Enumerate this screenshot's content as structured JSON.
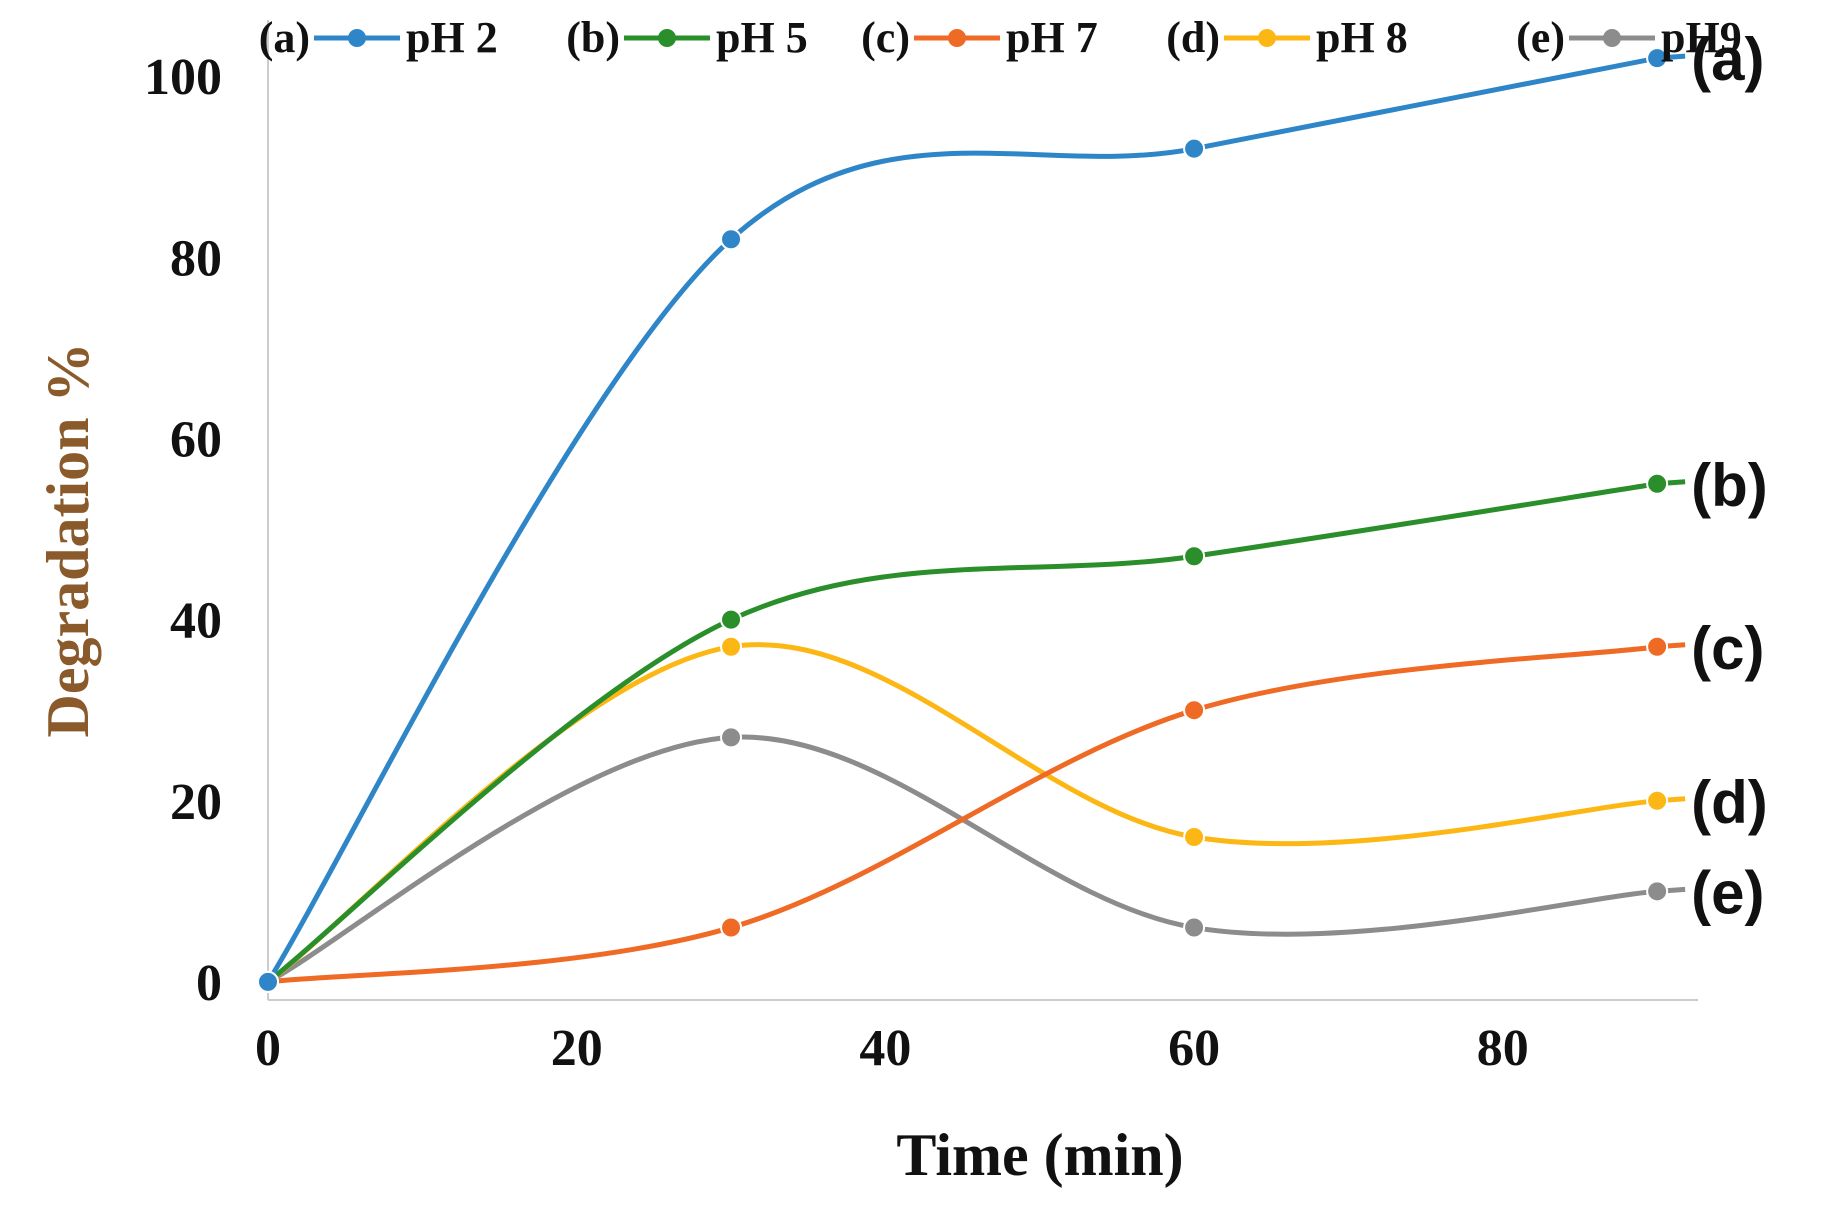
{
  "chart_data": {
    "type": "line",
    "title": "",
    "xlabel": "Time (min)",
    "ylabel": "Degradation %",
    "xlim": [
      0,
      92
    ],
    "ylim": [
      -2,
      104
    ],
    "xticks": [
      0,
      20,
      40,
      60,
      80
    ],
    "yticks": [
      0,
      20,
      40,
      60,
      80,
      100
    ],
    "grid": false,
    "legend_position": "top",
    "x": [
      0,
      30,
      60,
      90
    ],
    "series": [
      {
        "key": "a",
        "tag": "(a)",
        "name": "pH 2",
        "end_label": "(a)",
        "color": "#2e86c8",
        "values": [
          0,
          82,
          92,
          102
        ]
      },
      {
        "key": "b",
        "tag": "(b)",
        "name": "pH 5",
        "end_label": "(b)",
        "color": "#2a8f2a",
        "values": [
          0,
          40,
          47,
          55
        ]
      },
      {
        "key": "c",
        "tag": "(c)",
        "name": "pH 7",
        "end_label": "(c)",
        "color": "#ef6a25",
        "values": [
          0,
          6,
          30,
          37
        ]
      },
      {
        "key": "d",
        "tag": "(d)",
        "name": "pH 8",
        "end_label": "(d)",
        "color": "#fdb714",
        "values": [
          0,
          37,
          16,
          20
        ]
      },
      {
        "key": "e",
        "tag": "(e)",
        "name": "pH9",
        "end_label": "(e)",
        "color": "#8c8c8c",
        "values": [
          0,
          27,
          6,
          10
        ]
      }
    ]
  }
}
